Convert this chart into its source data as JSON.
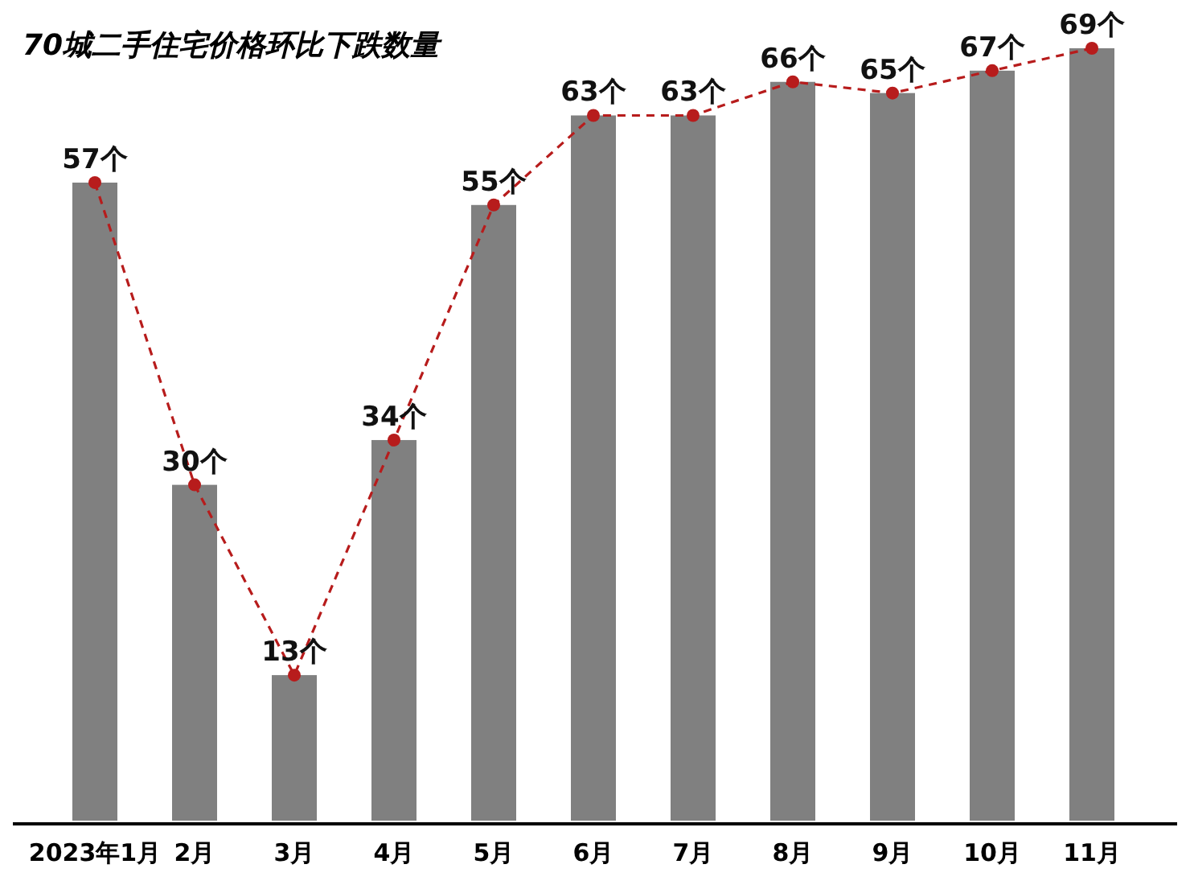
{
  "chart_data": {
    "type": "bar",
    "title": "70城二手住宅价格环比下跌数量",
    "categories": [
      "2023年1月",
      "2月",
      "3月",
      "4月",
      "5月",
      "6月",
      "7月",
      "8月",
      "9月",
      "10月",
      "11月"
    ],
    "grid": false,
    "series": [
      {
        "color": "#808080",
        "values": [
          57,
          30,
          13,
          34,
          55,
          63,
          63,
          66,
          65,
          67,
          69
        ]
      },
      {
        "type": "line",
        "color": "#b71c1c",
        "marker": "circle",
        "line_style": "dashed",
        "values": [
          57,
          30,
          13,
          34,
          55,
          63,
          63,
          66,
          65,
          67,
          69
        ],
        "value_labels": [
          "57个",
          "30个",
          "13个",
          "34个",
          "55个",
          "63个",
          "63个",
          "66个",
          "65个",
          "67个",
          "69个"
        ]
      }
    ]
  }
}
